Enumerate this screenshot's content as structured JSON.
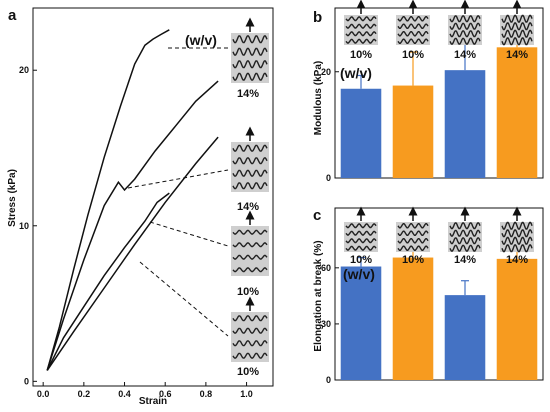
{
  "colors": {
    "blue": "#4472C4",
    "orange": "#F79B1F",
    "line": "#111111",
    "icon_bg": "#cfcfcf"
  },
  "chart_data": [
    {
      "panel": "a",
      "type": "line",
      "xlabel": "Strain",
      "ylabel": "Stress (kPa)",
      "xlim": [
        -0.05,
        1.13
      ],
      "ylim": [
        -0.3,
        24.0
      ],
      "xticks": [
        "0.0",
        "0.2",
        "0.4",
        "0.6",
        "0.8",
        "1.0"
      ],
      "xtick_values": [
        0.0,
        0.2,
        0.4,
        0.6,
        0.8,
        1.0
      ],
      "yticks": [
        "0",
        "10",
        "20"
      ],
      "ytick_values": [
        0,
        10,
        20
      ],
      "series": [
        {
          "x": [
            0.02,
            0.08,
            0.15,
            0.22,
            0.3,
            0.38,
            0.45,
            0.5,
            0.54,
            0.58,
            0.62
          ],
          "y": [
            0.7,
            3.5,
            7.2,
            10.7,
            14.4,
            17.7,
            20.4,
            21.6,
            22.0,
            22.3,
            22.6
          ]
        },
        {
          "x": [
            0.02,
            0.1,
            0.2,
            0.3,
            0.37,
            0.4,
            0.45,
            0.55,
            0.65,
            0.75,
            0.86
          ],
          "y": [
            0.7,
            4.0,
            7.8,
            11.3,
            12.8,
            12.3,
            13.0,
            14.8,
            16.4,
            18.0,
            19.3
          ]
        },
        {
          "x": [
            0.02,
            0.1,
            0.2,
            0.3,
            0.4,
            0.5,
            0.56,
            0.62
          ],
          "y": [
            0.7,
            2.8,
            4.8,
            6.8,
            8.6,
            10.3,
            11.5,
            12.1
          ]
        },
        {
          "x": [
            0.02,
            0.15,
            0.3,
            0.45,
            0.6,
            0.75,
            0.86
          ],
          "y": [
            0.7,
            3.2,
            6.0,
            8.8,
            11.5,
            14.0,
            15.7
          ]
        }
      ],
      "annotations": [
        {
          "text": "(w/v)"
        },
        {
          "text": "14%"
        },
        {
          "text": "14%"
        },
        {
          "text": "10%"
        },
        {
          "text": "10%"
        }
      ]
    },
    {
      "panel": "b",
      "type": "bar",
      "ylabel": "Modulous (kPa)",
      "ylim": [
        0,
        32
      ],
      "yticks": [
        "0",
        "20"
      ],
      "ytick_values": [
        0,
        20
      ],
      "categories": [
        "10%",
        "10%",
        "14%",
        "14%"
      ],
      "values": [
        16.8,
        17.4,
        20.3,
        24.6
      ],
      "errors": [
        2.5,
        6.3,
        5.3,
        5.1
      ],
      "annotation": "(w/v)"
    },
    {
      "panel": "c",
      "type": "bar",
      "ylabel": "Elongation at break (%)",
      "ylim": [
        0,
        92
      ],
      "yticks": [
        "0",
        "30",
        "60"
      ],
      "ytick_values": [
        0,
        30,
        60
      ],
      "categories": [
        "10%",
        "10%",
        "14%",
        "14%"
      ],
      "values": [
        60.7,
        65.5,
        45.4,
        64.8
      ],
      "errors": [
        4.8,
        10.2,
        7.7,
        8.0
      ],
      "annotation": "(w/v)"
    }
  ]
}
